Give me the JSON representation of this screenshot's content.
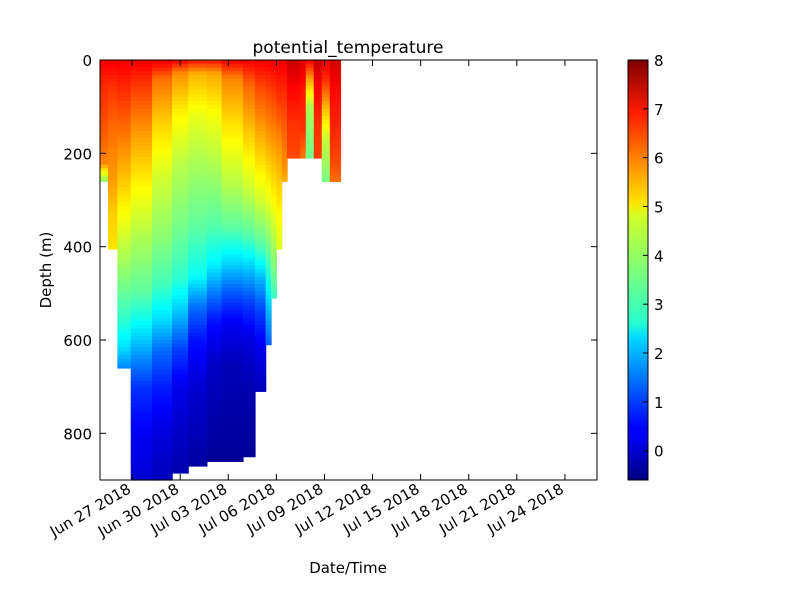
{
  "chart_data": {
    "type": "heatmap",
    "title": "potential_temperature",
    "xlabel": "Date/Time",
    "ylabel": "Depth (m)",
    "x_type": "date",
    "xlim": [
      "2018-06-25",
      "2018-07-26"
    ],
    "ylim": [
      0,
      900
    ],
    "y_inverted": true,
    "x_ticks": [
      {
        "date": "2018-06-27",
        "label": "Jun 27 2018"
      },
      {
        "date": "2018-06-30",
        "label": "Jun 30 2018"
      },
      {
        "date": "2018-07-03",
        "label": "Jul 03 2018"
      },
      {
        "date": "2018-07-06",
        "label": "Jul 06 2018"
      },
      {
        "date": "2018-07-09",
        "label": "Jul 09 2018"
      },
      {
        "date": "2018-07-12",
        "label": "Jul 12 2018"
      },
      {
        "date": "2018-07-15",
        "label": "Jul 15 2018"
      },
      {
        "date": "2018-07-18",
        "label": "Jul 18 2018"
      },
      {
        "date": "2018-07-21",
        "label": "Jul 21 2018"
      },
      {
        "date": "2018-07-24",
        "label": "Jul 24 2018"
      }
    ],
    "y_ticks": [
      {
        "value": 0,
        "label": "0"
      },
      {
        "value": 200,
        "label": "200"
      },
      {
        "value": 400,
        "label": "400"
      },
      {
        "value": 600,
        "label": "600"
      },
      {
        "value": 800,
        "label": "800"
      }
    ],
    "colorbar": {
      "colormap": "jet",
      "range": [
        -0.6,
        8
      ],
      "ticks": [
        {
          "value": 0,
          "label": "0"
        },
        {
          "value": 1,
          "label": "1"
        },
        {
          "value": 2,
          "label": "2"
        },
        {
          "value": 3,
          "label": "3"
        },
        {
          "value": 4,
          "label": "4"
        },
        {
          "value": 5,
          "label": "5"
        },
        {
          "value": 6,
          "label": "6"
        },
        {
          "value": 7,
          "label": "7"
        },
        {
          "value": 8,
          "label": "8"
        }
      ]
    },
    "profiles": [
      {
        "start": "2018-06-25",
        "end": "2018-06-25T12:00",
        "max_depth": 260,
        "temps": [
          [
            0,
            7.0
          ],
          [
            50,
            6.6
          ],
          [
            150,
            6.2
          ],
          [
            220,
            5.8
          ],
          [
            260,
            3.8
          ]
        ]
      },
      {
        "start": "2018-06-25T12:00",
        "end": "2018-06-26T02:00",
        "max_depth": 405,
        "temps": [
          [
            0,
            7.0
          ],
          [
            60,
            6.5
          ],
          [
            150,
            6.0
          ],
          [
            260,
            5.6
          ],
          [
            330,
            5.2
          ],
          [
            405,
            5.0
          ]
        ]
      },
      {
        "start": "2018-06-26T02:00",
        "end": "2018-06-26T22:00",
        "max_depth": 660,
        "temps": [
          [
            0,
            7.0
          ],
          [
            60,
            6.6
          ],
          [
            150,
            6.0
          ],
          [
            250,
            5.3
          ],
          [
            350,
            4.6
          ],
          [
            460,
            3.8
          ],
          [
            560,
            3.0
          ],
          [
            620,
            2.3
          ],
          [
            660,
            1.6
          ]
        ]
      },
      {
        "start": "2018-06-26T22:00",
        "end": "2018-06-28T06:00",
        "max_depth": 900,
        "temps": [
          [
            0,
            7.0
          ],
          [
            60,
            6.4
          ],
          [
            160,
            5.6
          ],
          [
            260,
            4.9
          ],
          [
            380,
            4.1
          ],
          [
            500,
            3.4
          ],
          [
            560,
            2.7
          ],
          [
            620,
            1.9
          ],
          [
            700,
            0.9
          ],
          [
            800,
            0.4
          ],
          [
            900,
            0.1
          ]
        ]
      },
      {
        "start": "2018-06-28T06:00",
        "end": "2018-06-29T12:00",
        "max_depth": 900,
        "temps": [
          [
            0,
            7.1
          ],
          [
            40,
            6.0
          ],
          [
            130,
            5.2
          ],
          [
            250,
            4.4
          ],
          [
            380,
            3.8
          ],
          [
            480,
            3.2
          ],
          [
            560,
            2.3
          ],
          [
            620,
            1.4
          ],
          [
            700,
            0.7
          ],
          [
            800,
            0.2
          ],
          [
            900,
            -0.1
          ]
        ]
      },
      {
        "start": "2018-06-29T12:00",
        "end": "2018-06-30T12:00",
        "max_depth": 885,
        "temps": [
          [
            0,
            7.0
          ],
          [
            30,
            5.7
          ],
          [
            110,
            4.9
          ],
          [
            220,
            4.2
          ],
          [
            360,
            3.6
          ],
          [
            470,
            3.0
          ],
          [
            550,
            2.0
          ],
          [
            620,
            1.0
          ],
          [
            700,
            0.3
          ],
          [
            800,
            0.0
          ],
          [
            885,
            -0.2
          ]
        ]
      },
      {
        "start": "2018-06-30T12:00",
        "end": "2018-07-01T16:00",
        "max_depth": 870,
        "temps": [
          [
            0,
            6.8
          ],
          [
            30,
            5.4
          ],
          [
            120,
            4.6
          ],
          [
            230,
            4.0
          ],
          [
            360,
            3.4
          ],
          [
            460,
            2.7
          ],
          [
            530,
            1.4
          ],
          [
            600,
            0.6
          ],
          [
            700,
            0.1
          ],
          [
            870,
            -0.3
          ]
        ]
      },
      {
        "start": "2018-07-01T16:00",
        "end": "2018-07-02T14:00",
        "max_depth": 860,
        "temps": [
          [
            0,
            6.8
          ],
          [
            30,
            5.5
          ],
          [
            120,
            4.7
          ],
          [
            240,
            4.0
          ],
          [
            360,
            3.3
          ],
          [
            440,
            2.5
          ],
          [
            500,
            1.5
          ],
          [
            560,
            0.6
          ],
          [
            650,
            0.0
          ],
          [
            860,
            -0.4
          ]
        ]
      },
      {
        "start": "2018-07-02T14:00",
        "end": "2018-07-03T22:00",
        "max_depth": 860,
        "temps": [
          [
            0,
            7.0
          ],
          [
            40,
            5.8
          ],
          [
            140,
            5.0
          ],
          [
            260,
            4.2
          ],
          [
            360,
            3.4
          ],
          [
            440,
            2.2
          ],
          [
            500,
            1.2
          ],
          [
            560,
            0.4
          ],
          [
            650,
            -0.1
          ],
          [
            860,
            -0.4
          ]
        ]
      },
      {
        "start": "2018-07-03T22:00",
        "end": "2018-07-04T16:00",
        "max_depth": 850,
        "temps": [
          [
            0,
            7.0
          ],
          [
            50,
            6.1
          ],
          [
            160,
            5.2
          ],
          [
            280,
            4.3
          ],
          [
            380,
            3.3
          ],
          [
            450,
            2.1
          ],
          [
            520,
            1.0
          ],
          [
            600,
            0.2
          ],
          [
            700,
            -0.2
          ],
          [
            850,
            -0.4
          ]
        ]
      },
      {
        "start": "2018-07-04T16:00",
        "end": "2018-07-05T08:00",
        "max_depth": 710,
        "temps": [
          [
            0,
            7.0
          ],
          [
            60,
            6.3
          ],
          [
            170,
            5.4
          ],
          [
            300,
            4.4
          ],
          [
            400,
            3.3
          ],
          [
            470,
            2.0
          ],
          [
            540,
            1.0
          ],
          [
            620,
            0.3
          ],
          [
            710,
            -0.1
          ]
        ]
      },
      {
        "start": "2018-07-05T08:00",
        "end": "2018-07-05T16:00",
        "max_depth": 610,
        "temps": [
          [
            0,
            7.0
          ],
          [
            60,
            6.4
          ],
          [
            180,
            5.5
          ],
          [
            300,
            4.6
          ],
          [
            400,
            3.6
          ],
          [
            480,
            2.7
          ],
          [
            560,
            1.8
          ],
          [
            610,
            1.3
          ]
        ]
      },
      {
        "start": "2018-07-05T16:00",
        "end": "2018-07-06T00:00",
        "max_depth": 510,
        "temps": [
          [
            0,
            7.0
          ],
          [
            70,
            6.4
          ],
          [
            180,
            5.6
          ],
          [
            300,
            4.8
          ],
          [
            400,
            4.0
          ],
          [
            470,
            3.5
          ],
          [
            510,
            3.1
          ]
        ]
      },
      {
        "start": "2018-07-06T00:00",
        "end": "2018-07-06T08:00",
        "max_depth": 405,
        "temps": [
          [
            0,
            7.0
          ],
          [
            80,
            6.5
          ],
          [
            180,
            5.7
          ],
          [
            280,
            5.1
          ],
          [
            350,
            4.7
          ],
          [
            405,
            4.5
          ]
        ]
      },
      {
        "start": "2018-07-06T08:00",
        "end": "2018-07-06T16:00",
        "max_depth": 260,
        "temps": [
          [
            0,
            7.0
          ],
          [
            80,
            6.5
          ],
          [
            170,
            6.0
          ],
          [
            230,
            5.7
          ],
          [
            260,
            5.4
          ]
        ]
      },
      {
        "start": "2018-07-06T16:00",
        "end": "2018-07-07T12:00",
        "max_depth": 210,
        "temps": [
          [
            0,
            7.4
          ],
          [
            60,
            6.9
          ],
          [
            140,
            6.5
          ],
          [
            210,
            6.3
          ]
        ]
      },
      {
        "start": "2018-07-07T12:00",
        "end": "2018-07-07T20:00",
        "max_depth": 210,
        "temps": [
          [
            0,
            7.2
          ],
          [
            60,
            6.8
          ],
          [
            150,
            6.5
          ],
          [
            210,
            5.9
          ]
        ]
      },
      {
        "start": "2018-07-07T20:00",
        "end": "2018-07-08T08:00",
        "max_depth": 210,
        "temps": [
          [
            0,
            7.0
          ],
          [
            40,
            5.6
          ],
          [
            100,
            4.1
          ],
          [
            160,
            3.8
          ],
          [
            210,
            3.6
          ]
        ]
      },
      {
        "start": "2018-07-08T08:00",
        "end": "2018-07-08T20:00",
        "max_depth": 210,
        "temps": [
          [
            0,
            7.4
          ],
          [
            60,
            6.9
          ],
          [
            140,
            6.5
          ],
          [
            210,
            6.4
          ]
        ]
      },
      {
        "start": "2018-07-08T20:00",
        "end": "2018-07-09T08:00",
        "max_depth": 260,
        "temps": [
          [
            0,
            7.0
          ],
          [
            40,
            6.6
          ],
          [
            100,
            5.4
          ],
          [
            170,
            4.3
          ],
          [
            230,
            3.9
          ],
          [
            260,
            3.6
          ]
        ]
      },
      {
        "start": "2018-07-09T08:00",
        "end": "2018-07-10T00:00",
        "max_depth": 260,
        "temps": [
          [
            0,
            7.3
          ],
          [
            60,
            6.9
          ],
          [
            150,
            6.6
          ],
          [
            220,
            6.3
          ],
          [
            260,
            6.0
          ]
        ]
      }
    ]
  }
}
